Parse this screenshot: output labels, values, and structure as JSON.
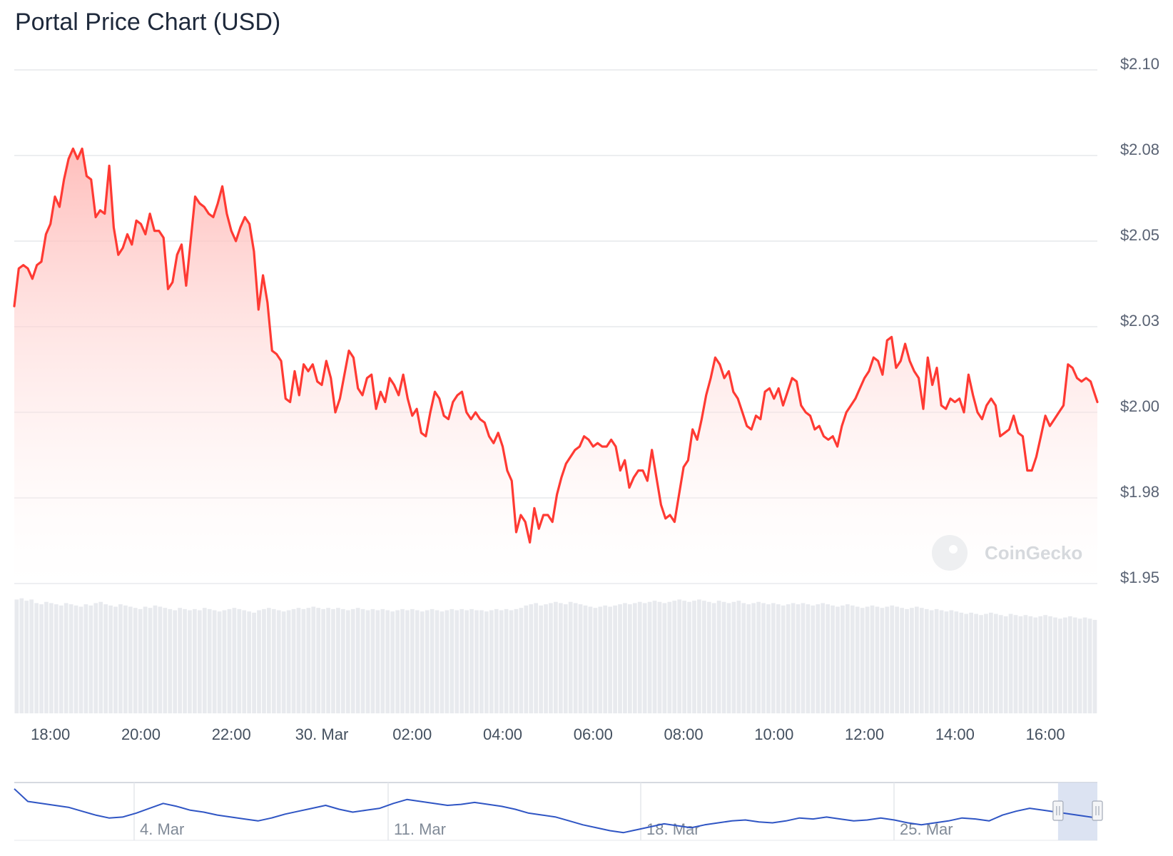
{
  "title": "Portal Price Chart (USD)",
  "watermark": "CoinGecko",
  "colors": {
    "line": "#ff3a33",
    "fill_top": "#ffb3b0",
    "volume": "#e8eaee",
    "navigator_line": "#2f55c4",
    "navigator_mask": "#d6def0",
    "grid": "#e6e8ec"
  },
  "chart_data": {
    "type": "area",
    "title": "Portal Price Chart (USD)",
    "x_ticks": [
      "18:00",
      "20:00",
      "22:00",
      "30. Mar",
      "02:00",
      "04:00",
      "06:00",
      "08:00",
      "10:00",
      "12:00",
      "14:00",
      "16:00"
    ],
    "y_ticks": [
      "$2.10",
      "$2.08",
      "$2.05",
      "$2.03",
      "$2.00",
      "$1.98",
      "$1.95"
    ],
    "ylim": [
      1.95,
      2.1
    ],
    "x_range_hours": [
      17.2,
      41.15
    ],
    "grid": true,
    "legend": "none",
    "series": [
      {
        "points": [
          [
            17.2,
            2.031
          ],
          [
            17.3,
            2.042
          ],
          [
            17.4,
            2.043
          ],
          [
            17.5,
            2.042
          ],
          [
            17.6,
            2.039
          ],
          [
            17.7,
            2.043
          ],
          [
            17.8,
            2.044
          ],
          [
            17.9,
            2.052
          ],
          [
            18.0,
            2.055
          ],
          [
            18.1,
            2.063
          ],
          [
            18.2,
            2.06
          ],
          [
            18.3,
            2.068
          ],
          [
            18.4,
            2.074
          ],
          [
            18.5,
            2.077
          ],
          [
            18.6,
            2.074
          ],
          [
            18.7,
            2.077
          ],
          [
            18.8,
            2.069
          ],
          [
            18.9,
            2.068
          ],
          [
            19.0,
            2.057
          ],
          [
            19.1,
            2.059
          ],
          [
            19.2,
            2.058
          ],
          [
            19.3,
            2.072
          ],
          [
            19.4,
            2.054
          ],
          [
            19.5,
            2.046
          ],
          [
            19.6,
            2.048
          ],
          [
            19.7,
            2.052
          ],
          [
            19.8,
            2.049
          ],
          [
            19.9,
            2.056
          ],
          [
            20.0,
            2.055
          ],
          [
            20.1,
            2.052
          ],
          [
            20.2,
            2.058
          ],
          [
            20.3,
            2.053
          ],
          [
            20.4,
            2.053
          ],
          [
            20.5,
            2.051
          ],
          [
            20.6,
            2.036
          ],
          [
            20.7,
            2.038
          ],
          [
            20.8,
            2.046
          ],
          [
            20.9,
            2.049
          ],
          [
            21.0,
            2.037
          ],
          [
            21.1,
            2.05
          ],
          [
            21.2,
            2.063
          ],
          [
            21.3,
            2.061
          ],
          [
            21.4,
            2.06
          ],
          [
            21.5,
            2.058
          ],
          [
            21.6,
            2.057
          ],
          [
            21.7,
            2.061
          ],
          [
            21.8,
            2.066
          ],
          [
            21.9,
            2.058
          ],
          [
            22.0,
            2.053
          ],
          [
            22.1,
            2.05
          ],
          [
            22.2,
            2.054
          ],
          [
            22.3,
            2.057
          ],
          [
            22.4,
            2.055
          ],
          [
            22.5,
            2.047
          ],
          [
            22.6,
            2.03
          ],
          [
            22.7,
            2.04
          ],
          [
            22.8,
            2.032
          ],
          [
            22.9,
            2.018
          ],
          [
            23.0,
            2.017
          ],
          [
            23.1,
            2.015
          ],
          [
            23.2,
            2.004
          ],
          [
            23.3,
            2.003
          ],
          [
            23.4,
            2.012
          ],
          [
            23.5,
            2.005
          ],
          [
            23.6,
            2.014
          ],
          [
            23.7,
            2.012
          ],
          [
            23.8,
            2.014
          ],
          [
            23.9,
            2.009
          ],
          [
            24.0,
            2.008
          ],
          [
            24.1,
            2.015
          ],
          [
            24.2,
            2.01
          ],
          [
            24.3,
            2.0
          ],
          [
            24.4,
            2.004
          ],
          [
            24.5,
            2.011
          ],
          [
            24.6,
            2.018
          ],
          [
            24.7,
            2.016
          ],
          [
            24.8,
            2.007
          ],
          [
            24.9,
            2.005
          ],
          [
            25.0,
            2.01
          ],
          [
            25.1,
            2.011
          ],
          [
            25.2,
            2.001
          ],
          [
            25.3,
            2.006
          ],
          [
            25.4,
            2.003
          ],
          [
            25.5,
            2.01
          ],
          [
            25.6,
            2.008
          ],
          [
            25.7,
            2.005
          ],
          [
            25.8,
            2.011
          ],
          [
            25.9,
            2.004
          ],
          [
            26.0,
            1.999
          ],
          [
            26.1,
            2.001
          ],
          [
            26.2,
            1.994
          ],
          [
            26.3,
            1.993
          ],
          [
            26.4,
            2.0
          ],
          [
            26.5,
            2.006
          ],
          [
            26.6,
            2.004
          ],
          [
            26.7,
            1.999
          ],
          [
            26.8,
            1.998
          ],
          [
            26.9,
            2.003
          ],
          [
            27.0,
            2.005
          ],
          [
            27.1,
            2.006
          ],
          [
            27.2,
            2.0
          ],
          [
            27.3,
            1.998
          ],
          [
            27.4,
            2.0
          ],
          [
            27.5,
            1.998
          ],
          [
            27.6,
            1.997
          ],
          [
            27.7,
            1.993
          ],
          [
            27.8,
            1.991
          ],
          [
            27.9,
            1.994
          ],
          [
            28.0,
            1.99
          ],
          [
            28.1,
            1.983
          ],
          [
            28.2,
            1.98
          ],
          [
            28.3,
            1.965
          ],
          [
            28.4,
            1.97
          ],
          [
            28.5,
            1.968
          ],
          [
            28.6,
            1.962
          ],
          [
            28.7,
            1.972
          ],
          [
            28.8,
            1.966
          ],
          [
            28.9,
            1.97
          ],
          [
            29.0,
            1.97
          ],
          [
            29.1,
            1.968
          ],
          [
            29.2,
            1.976
          ],
          [
            29.3,
            1.981
          ],
          [
            29.4,
            1.985
          ],
          [
            29.5,
            1.987
          ],
          [
            29.6,
            1.989
          ],
          [
            29.7,
            1.99
          ],
          [
            29.8,
            1.993
          ],
          [
            29.9,
            1.992
          ],
          [
            30.0,
            1.99
          ],
          [
            30.1,
            1.991
          ],
          [
            30.2,
            1.99
          ],
          [
            30.3,
            1.99
          ],
          [
            30.4,
            1.992
          ],
          [
            30.5,
            1.99
          ],
          [
            30.6,
            1.983
          ],
          [
            30.7,
            1.986
          ],
          [
            30.8,
            1.978
          ],
          [
            30.9,
            1.981
          ],
          [
            31.0,
            1.983
          ],
          [
            31.1,
            1.983
          ],
          [
            31.2,
            1.98
          ],
          [
            31.3,
            1.989
          ],
          [
            31.4,
            1.981
          ],
          [
            31.5,
            1.973
          ],
          [
            31.6,
            1.969
          ],
          [
            31.7,
            1.97
          ],
          [
            31.8,
            1.968
          ],
          [
            31.9,
            1.976
          ],
          [
            32.0,
            1.984
          ],
          [
            32.1,
            1.986
          ],
          [
            32.2,
            1.995
          ],
          [
            32.3,
            1.992
          ],
          [
            32.4,
            1.998
          ],
          [
            32.5,
            2.005
          ],
          [
            32.6,
            2.01
          ],
          [
            32.7,
            2.016
          ],
          [
            32.8,
            2.014
          ],
          [
            32.9,
            2.01
          ],
          [
            33.0,
            2.012
          ],
          [
            33.1,
            2.006
          ],
          [
            33.2,
            2.004
          ],
          [
            33.3,
            2.0
          ],
          [
            33.4,
            1.996
          ],
          [
            33.5,
            1.995
          ],
          [
            33.6,
            1.999
          ],
          [
            33.7,
            1.998
          ],
          [
            33.8,
            2.006
          ],
          [
            33.9,
            2.007
          ],
          [
            34.0,
            2.004
          ],
          [
            34.1,
            2.007
          ],
          [
            34.2,
            2.002
          ],
          [
            34.3,
            2.006
          ],
          [
            34.4,
            2.01
          ],
          [
            34.5,
            2.009
          ],
          [
            34.6,
            2.002
          ],
          [
            34.7,
            2.0
          ],
          [
            34.8,
            1.999
          ],
          [
            34.9,
            1.995
          ],
          [
            35.0,
            1.996
          ],
          [
            35.1,
            1.993
          ],
          [
            35.2,
            1.992
          ],
          [
            35.3,
            1.993
          ],
          [
            35.4,
            1.99
          ],
          [
            35.5,
            1.996
          ],
          [
            35.6,
            2.0
          ],
          [
            35.7,
            2.002
          ],
          [
            35.8,
            2.004
          ],
          [
            35.9,
            2.007
          ],
          [
            36.0,
            2.01
          ],
          [
            36.1,
            2.012
          ],
          [
            36.2,
            2.016
          ],
          [
            36.3,
            2.015
          ],
          [
            36.4,
            2.011
          ],
          [
            36.5,
            2.021
          ],
          [
            36.6,
            2.022
          ],
          [
            36.7,
            2.013
          ],
          [
            36.8,
            2.015
          ],
          [
            36.9,
            2.02
          ],
          [
            37.0,
            2.015
          ],
          [
            37.1,
            2.012
          ],
          [
            37.2,
            2.01
          ],
          [
            37.3,
            2.001
          ],
          [
            37.4,
            2.016
          ],
          [
            37.5,
            2.008
          ],
          [
            37.6,
            2.013
          ],
          [
            37.7,
            2.002
          ],
          [
            37.8,
            2.001
          ],
          [
            37.9,
            2.004
          ],
          [
            38.0,
            2.003
          ],
          [
            38.1,
            2.004
          ],
          [
            38.2,
            2.0
          ],
          [
            38.3,
            2.011
          ],
          [
            38.4,
            2.005
          ],
          [
            38.5,
            2.0
          ],
          [
            38.6,
            1.998
          ],
          [
            38.7,
            2.002
          ],
          [
            38.8,
            2.004
          ],
          [
            38.9,
            2.002
          ],
          [
            39.0,
            1.993
          ],
          [
            39.1,
            1.994
          ],
          [
            39.2,
            1.995
          ],
          [
            39.3,
            1.999
          ],
          [
            39.4,
            1.994
          ],
          [
            39.5,
            1.993
          ],
          [
            39.6,
            1.983
          ],
          [
            39.7,
            1.983
          ],
          [
            39.8,
            1.987
          ],
          [
            39.9,
            1.993
          ],
          [
            40.0,
            1.999
          ],
          [
            40.1,
            1.996
          ],
          [
            40.2,
            1.998
          ],
          [
            40.3,
            2.0
          ],
          [
            40.4,
            2.002
          ],
          [
            40.5,
            2.014
          ],
          [
            40.6,
            2.013
          ],
          [
            40.7,
            2.01
          ],
          [
            40.8,
            2.009
          ],
          [
            40.9,
            2.01
          ],
          [
            41.0,
            2.009
          ],
          [
            41.15,
            2.003
          ]
        ]
      }
    ],
    "volume_relative": [
      0.95,
      0.96,
      0.94,
      0.95,
      0.92,
      0.91,
      0.93,
      0.92,
      0.91,
      0.9,
      0.92,
      0.91,
      0.9,
      0.89,
      0.91,
      0.9,
      0.92,
      0.93,
      0.91,
      0.9,
      0.89,
      0.91,
      0.9,
      0.89,
      0.88,
      0.87,
      0.89,
      0.88,
      0.9,
      0.89,
      0.88,
      0.87,
      0.86,
      0.88,
      0.87,
      0.86,
      0.87,
      0.86,
      0.88,
      0.87,
      0.86,
      0.85,
      0.86,
      0.87,
      0.88,
      0.87,
      0.86,
      0.85,
      0.84,
      0.86,
      0.87,
      0.88,
      0.87,
      0.86,
      0.85,
      0.86,
      0.87,
      0.88,
      0.87,
      0.88,
      0.89,
      0.88,
      0.87,
      0.88,
      0.87,
      0.88,
      0.87,
      0.86,
      0.87,
      0.88,
      0.87,
      0.86,
      0.87,
      0.86,
      0.87,
      0.86,
      0.85,
      0.86,
      0.87,
      0.86,
      0.87,
      0.86,
      0.85,
      0.86,
      0.87,
      0.86,
      0.85,
      0.86,
      0.87,
      0.86,
      0.87,
      0.86,
      0.87,
      0.86,
      0.86,
      0.85,
      0.86,
      0.87,
      0.86,
      0.87,
      0.86,
      0.87,
      0.88,
      0.9,
      0.91,
      0.92,
      0.9,
      0.91,
      0.92,
      0.93,
      0.92,
      0.91,
      0.93,
      0.92,
      0.91,
      0.9,
      0.89,
      0.88,
      0.89,
      0.9,
      0.89,
      0.9,
      0.91,
      0.92,
      0.91,
      0.92,
      0.93,
      0.92,
      0.93,
      0.94,
      0.93,
      0.92,
      0.93,
      0.94,
      0.95,
      0.94,
      0.93,
      0.94,
      0.95,
      0.94,
      0.93,
      0.92,
      0.94,
      0.93,
      0.92,
      0.93,
      0.94,
      0.92,
      0.91,
      0.92,
      0.93,
      0.92,
      0.91,
      0.92,
      0.91,
      0.9,
      0.91,
      0.92,
      0.91,
      0.92,
      0.91,
      0.9,
      0.91,
      0.92,
      0.91,
      0.9,
      0.89,
      0.9,
      0.91,
      0.9,
      0.89,
      0.88,
      0.89,
      0.9,
      0.89,
      0.88,
      0.89,
      0.9,
      0.89,
      0.88,
      0.87,
      0.88,
      0.89,
      0.88,
      0.87,
      0.86,
      0.87,
      0.86,
      0.85,
      0.86,
      0.85,
      0.84,
      0.83,
      0.84,
      0.83,
      0.82,
      0.83,
      0.84,
      0.83,
      0.82,
      0.81,
      0.83,
      0.82,
      0.81,
      0.82,
      0.81,
      0.8,
      0.81,
      0.82,
      0.81,
      0.8,
      0.79,
      0.8,
      0.81,
      0.8,
      0.79,
      0.8,
      0.79,
      0.78
    ]
  },
  "navigator": {
    "labels": [
      "4. Mar",
      "11. Mar",
      "18. Mar",
      "25. Mar"
    ],
    "values": [
      2.35,
      2.22,
      2.2,
      2.18,
      2.16,
      2.12,
      2.08,
      2.05,
      2.06,
      2.1,
      2.15,
      2.2,
      2.17,
      2.13,
      2.11,
      2.08,
      2.06,
      2.04,
      2.02,
      2.05,
      2.09,
      2.12,
      2.15,
      2.18,
      2.14,
      2.11,
      2.13,
      2.15,
      2.2,
      2.24,
      2.22,
      2.2,
      2.18,
      2.19,
      2.21,
      2.19,
      2.17,
      2.14,
      2.1,
      2.08,
      2.06,
      2.02,
      1.98,
      1.95,
      1.92,
      1.9,
      1.93,
      1.96,
      1.99,
      1.97,
      1.95,
      1.98,
      2.0,
      2.02,
      2.03,
      2.01,
      2.0,
      2.02,
      2.05,
      2.04,
      2.06,
      2.04,
      2.02,
      2.03,
      2.05,
      2.03,
      2.0,
      1.98,
      2.0,
      2.02,
      2.05,
      2.04,
      2.02,
      2.08,
      2.12,
      2.15,
      2.13,
      2.11,
      2.09,
      2.07,
      2.05
    ],
    "selection_fraction": [
      0.965,
      1.0
    ]
  }
}
